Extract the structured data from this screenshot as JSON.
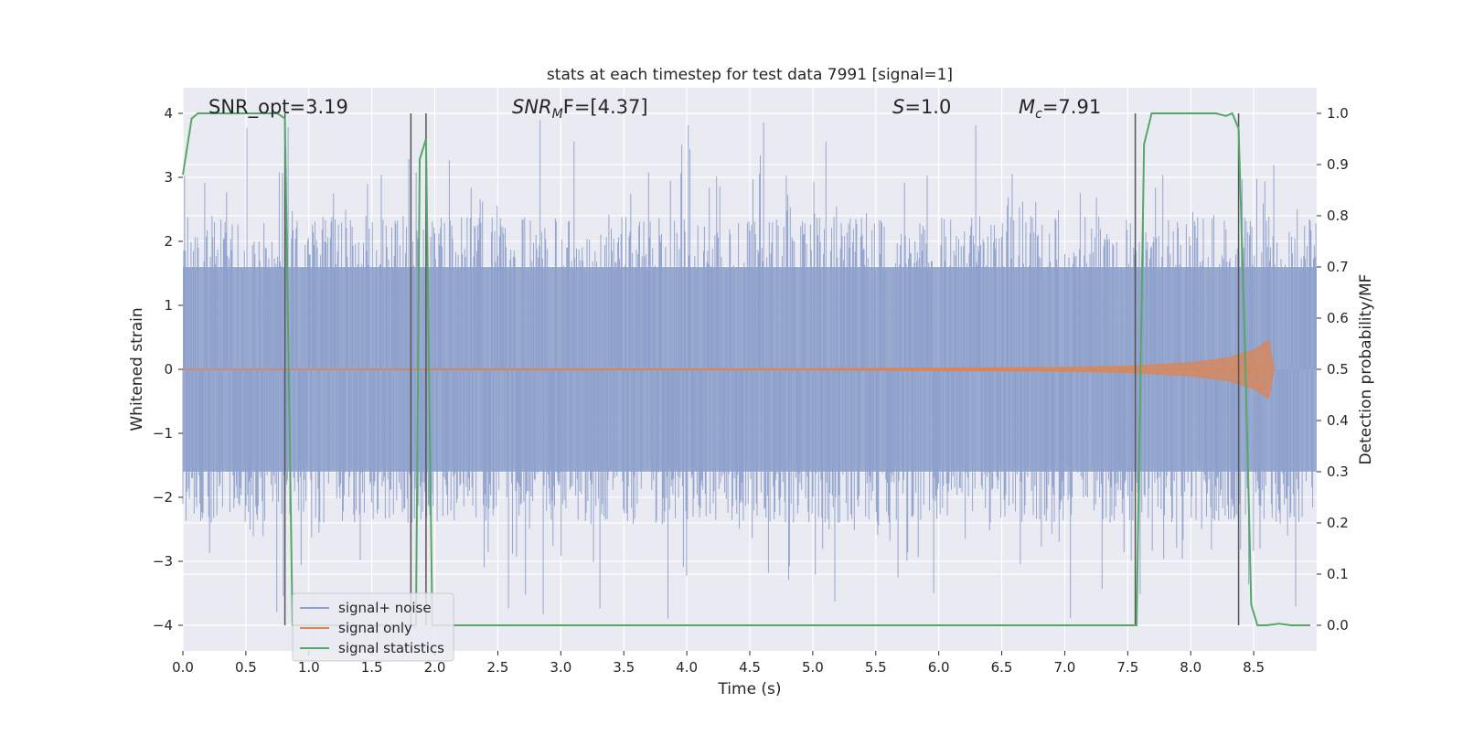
{
  "chart_data": {
    "type": "line",
    "title": "stats at each timestep for test data 7991 [signal=1]",
    "xlabel": "Time (s)",
    "ylabel": "Whitened strain",
    "ylabel_right": "Detection probability/MF",
    "xlim": [
      0,
      9.0
    ],
    "ylim": [
      -4.4,
      4.4
    ],
    "ylim_right": [
      -0.05,
      1.05
    ],
    "x_ticks": [
      0.0,
      0.5,
      1.0,
      1.5,
      2.0,
      2.5,
      3.0,
      3.5,
      4.0,
      4.5,
      5.0,
      5.5,
      6.0,
      6.5,
      7.0,
      7.5,
      8.0,
      8.5
    ],
    "x_tick_labels": [
      "0.0",
      "0.5",
      "1.0",
      "1.5",
      "2.0",
      "2.5",
      "3.0",
      "3.5",
      "4.0",
      "4.5",
      "5.0",
      "5.5",
      "6.0",
      "6.5",
      "7.0",
      "7.5",
      "8.0",
      "8.5"
    ],
    "y_ticks": [
      -4,
      -3,
      -2,
      -1,
      0,
      1,
      2,
      3,
      4
    ],
    "y_tick_labels": [
      "−4",
      "−3",
      "−2",
      "−1",
      "0",
      "1",
      "2",
      "3",
      "4"
    ],
    "y_ticks_right": [
      0.0,
      0.1,
      0.2,
      0.3,
      0.4,
      0.5,
      0.6,
      0.7,
      0.8,
      0.9,
      1.0
    ],
    "y_tick_labels_right": [
      "0.0",
      "0.1",
      "0.2",
      "0.3",
      "0.4",
      "0.5",
      "0.6",
      "0.7",
      "0.8",
      "0.9",
      "1.0"
    ],
    "grid": true,
    "legend_position": "lower-left",
    "annotations": [
      {
        "id": "snr-opt",
        "prefix": "SNR_opt=3.19",
        "sub": "",
        "suffix": "",
        "italic": false
      },
      {
        "id": "snr-mf",
        "prefix": "SNR",
        "sub": "M",
        "suffix": "F=[4.37]",
        "italic": true
      },
      {
        "id": "s",
        "prefix": "S",
        "sub": "",
        "suffix": "=1.0",
        "italic": true
      },
      {
        "id": "mc",
        "prefix": "M",
        "sub": "c",
        "suffix": "=7.91",
        "italic": true
      }
    ],
    "series": [
      {
        "name": "signal+ noise",
        "color": "#8da0cb",
        "description_values": "whitened noise, roughly symmetric about 0, envelope about ±1.6 with spikes up to about ±3.9",
        "envelope": 1.6,
        "spike_max": 3.9
      },
      {
        "name": "signal only",
        "color": "#dd8452",
        "t": [
          0.0,
          5.0,
          6.0,
          7.0,
          7.5,
          8.0,
          8.3,
          8.5,
          8.62,
          8.66
        ],
        "amplitude": [
          0.0,
          0.01,
          0.02,
          0.03,
          0.05,
          0.1,
          0.18,
          0.3,
          0.45,
          0.0
        ]
      },
      {
        "name": "signal statistics",
        "color": "#55a868",
        "t": [
          0.0,
          0.07,
          0.12,
          0.5,
          0.75,
          0.81,
          0.87,
          0.93,
          1.0,
          1.8,
          1.85,
          1.88,
          1.93,
          1.98,
          2.0,
          7.55,
          7.57,
          7.63,
          7.69,
          8.2,
          8.28,
          8.33,
          8.38,
          8.43,
          8.48,
          8.53,
          8.6,
          8.7,
          8.8,
          8.95
        ],
        "values": [
          0.88,
          0.99,
          1.0,
          1.0,
          1.0,
          0.99,
          0.0,
          0.0,
          0.0,
          0.0,
          0.0,
          0.91,
          0.95,
          0.0,
          0.0,
          0.0,
          0.0,
          0.94,
          1.0,
          1.0,
          0.995,
          1.0,
          0.97,
          0.55,
          0.04,
          0.0,
          0.0,
          0.003,
          0.0,
          0.0
        ]
      }
    ],
    "vertical_markers_x": [
      0.81,
      1.81,
      1.93,
      7.56,
      8.38
    ]
  }
}
